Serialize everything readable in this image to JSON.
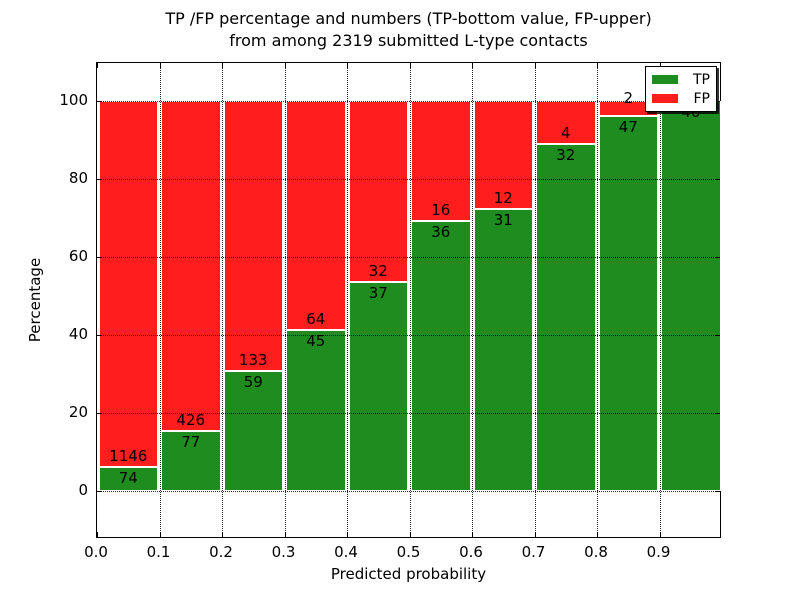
{
  "figure": {
    "title_line1": "TP /FP percentage and numbers (TP-bottom value, FP-upper)",
    "title_line2": "from among 2319 submitted L-type contacts",
    "xlabel": "Predicted probability",
    "ylabel": "Percentage"
  },
  "legend": {
    "position": "upper right",
    "items": [
      {
        "label": "TP",
        "color": "#1e8c1e"
      },
      {
        "label": "FP",
        "color": "#ff1e1e"
      }
    ]
  },
  "chart_data": {
    "type": "bar",
    "stacked": true,
    "title": "TP /FP percentage and numbers (TP-bottom value, FP-upper)\nfrom among 2319 submitted L-type contacts",
    "xlabel": "Predicted probability",
    "ylabel": "Percentage",
    "total_submitted_contacts": 2319,
    "bins_start": [
      0.0,
      0.1,
      0.2,
      0.3,
      0.4,
      0.5,
      0.6,
      0.7,
      0.8,
      0.9
    ],
    "bin_width": 0.1,
    "series": [
      {
        "name": "TP",
        "color": "#1e8c1e",
        "counts": [
          74,
          77,
          59,
          45,
          37,
          36,
          31,
          32,
          47,
          46
        ]
      },
      {
        "name": "FP",
        "color": "#ff1e1e",
        "counts": [
          1146,
          426,
          133,
          64,
          32,
          16,
          12,
          4,
          2,
          0
        ]
      }
    ],
    "tp_percent": [
      6.07,
      15.31,
      30.73,
      41.28,
      53.62,
      69.23,
      72.09,
      88.89,
      95.92,
      100.0
    ],
    "xticks": [
      "0.0",
      "0.1",
      "0.2",
      "0.3",
      "0.4",
      "0.5",
      "0.6",
      "0.7",
      "0.8",
      "0.9"
    ],
    "yticks": [
      "0",
      "20",
      "40",
      "60",
      "80",
      "100"
    ],
    "xlim": [
      0.0,
      1.0
    ],
    "ylim": [
      -12,
      110
    ],
    "grid": true,
    "grid_style": "dotted",
    "legend_position": "upper right"
  }
}
